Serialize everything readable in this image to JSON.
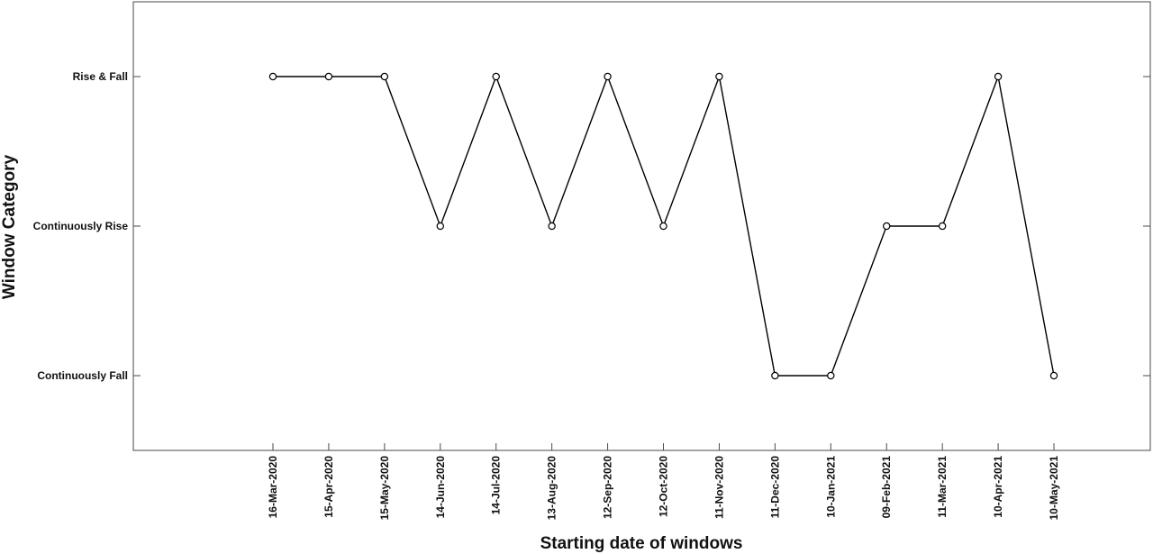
{
  "chart_data": {
    "type": "line",
    "title": "",
    "xlabel": "Starting date of windows",
    "ylabel": "Window Category",
    "categories": [
      "16-Mar-2020",
      "15-Apr-2020",
      "15-May-2020",
      "14-Jun-2020",
      "14-Jul-2020",
      "13-Aug-2020",
      "12-Sep-2020",
      "12-Oct-2020",
      "11-Nov-2020",
      "11-Dec-2020",
      "10-Jan-2021",
      "09-Feb-2021",
      "11-Mar-2021",
      "10-Apr-2021",
      "10-May-2021"
    ],
    "y_categories": [
      "Continuously Fall",
      "Continuously Rise",
      "Rise & Fall"
    ],
    "series": [
      {
        "values": [
          "Rise & Fall",
          "Rise & Fall",
          "Rise & Fall",
          "Continuously Rise",
          "Rise & Fall",
          "Continuously Rise",
          "Rise & Fall",
          "Continuously Rise",
          "Rise & Fall",
          "Continuously Fall",
          "Continuously Fall",
          "Continuously Rise",
          "Continuously Rise",
          "Rise & Fall",
          "Continuously Fall"
        ]
      }
    ],
    "marker": "circle",
    "line_color": "#000000",
    "grid": false,
    "legend": "none"
  }
}
